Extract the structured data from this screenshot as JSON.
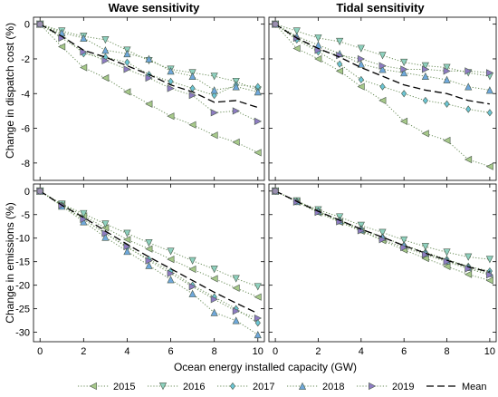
{
  "figure": {
    "xlabel": "Ocean energy installed capacity (GW)",
    "ylabel_top": "Change in dispatch cost (%)",
    "ylabel_bottom": "Change in emissions (%)",
    "col_titles": [
      "Wave sensitivity",
      "Tidal sensitivity"
    ]
  },
  "legend": [
    {
      "label": "2015",
      "marker": "triangle-left",
      "color": "#a7c98a"
    },
    {
      "label": "2016",
      "marker": "triangle-down",
      "color": "#8ed1bf"
    },
    {
      "label": "2017",
      "marker": "diamond",
      "color": "#6cc6d6"
    },
    {
      "label": "2018",
      "marker": "triangle-up",
      "color": "#6fa8dc"
    },
    {
      "label": "2019",
      "marker": "triangle-right",
      "color": "#8e7cc3"
    },
    {
      "label": "Mean",
      "marker": "none",
      "color": "#000000"
    }
  ],
  "chart_data": [
    {
      "type": "line",
      "title": "Wave sensitivity",
      "ylabel": "Change in dispatch cost (%)",
      "xlim": [
        -0.3,
        10.3
      ],
      "ylim": [
        -9,
        0.4
      ],
      "xticks": [
        0,
        2,
        4,
        6,
        8,
        10
      ],
      "yticks": [
        0,
        -2,
        -4,
        -6,
        -8
      ],
      "x": [
        0,
        1,
        2,
        3,
        4,
        5,
        6,
        7,
        8,
        9,
        10
      ],
      "series": [
        {
          "name": "2015",
          "values": [
            0,
            -1.3,
            -2.5,
            -3.1,
            -3.9,
            -4.6,
            -5.3,
            -5.8,
            -6.4,
            -6.8,
            -7.4
          ]
        },
        {
          "name": "2016",
          "values": [
            0,
            -0.4,
            -0.7,
            -0.9,
            -1.5,
            -2.1,
            -2.6,
            -2.8,
            -3.0,
            -3.3,
            -3.8
          ]
        },
        {
          "name": "2017",
          "values": [
            0,
            -0.6,
            -1.7,
            -1.9,
            -2.2,
            -2.9,
            -3.3,
            -3.7,
            -4.1,
            -3.5,
            -3.6
          ]
        },
        {
          "name": "2018",
          "values": [
            0,
            -0.5,
            -0.8,
            -1.5,
            -1.7,
            -2.0,
            -2.7,
            -3.0,
            -3.8,
            -3.6,
            -3.9
          ]
        },
        {
          "name": "2019",
          "values": [
            0,
            -0.8,
            -1.6,
            -2.1,
            -2.6,
            -3.1,
            -3.7,
            -4.1,
            -5.1,
            -5.0,
            -5.6
          ]
        },
        {
          "name": "Mean",
          "values": [
            0,
            -0.7,
            -1.5,
            -1.9,
            -2.4,
            -2.9,
            -3.5,
            -3.9,
            -4.5,
            -4.4,
            -4.8
          ]
        }
      ]
    },
    {
      "type": "line",
      "title": "Tidal sensitivity",
      "ylabel": "",
      "xlim": [
        -0.3,
        10.3
      ],
      "ylim": [
        -9,
        0.4
      ],
      "xticks": [
        0,
        2,
        4,
        6,
        8,
        10
      ],
      "yticks": [
        0,
        -2,
        -4,
        -6,
        -8
      ],
      "x": [
        0,
        1,
        2,
        3,
        4,
        5,
        6,
        7,
        8,
        9,
        10
      ],
      "series": [
        {
          "name": "2015",
          "values": [
            0,
            -1.4,
            -2.0,
            -2.7,
            -3.6,
            -4.4,
            -5.6,
            -6.3,
            -6.7,
            -7.8,
            -8.2
          ]
        },
        {
          "name": "2016",
          "values": [
            0,
            -0.4,
            -0.8,
            -1.0,
            -1.4,
            -1.8,
            -2.2,
            -2.4,
            -2.5,
            -2.8,
            -3.0
          ]
        },
        {
          "name": "2017",
          "values": [
            0,
            -0.9,
            -1.6,
            -2.3,
            -3.2,
            -3.6,
            -4.0,
            -4.4,
            -4.6,
            -4.9,
            -5.1
          ]
        },
        {
          "name": "2018",
          "values": [
            0,
            -0.7,
            -1.2,
            -1.7,
            -2.3,
            -2.6,
            -2.8,
            -3.0,
            -3.2,
            -3.6,
            -3.8
          ]
        },
        {
          "name": "2019",
          "values": [
            0,
            -0.8,
            -1.5,
            -1.8,
            -2.0,
            -2.4,
            -2.6,
            -2.6,
            -2.7,
            -2.7,
            -2.8
          ]
        },
        {
          "name": "Mean",
          "values": [
            0,
            -0.8,
            -1.4,
            -1.9,
            -2.5,
            -3.0,
            -3.5,
            -3.8,
            -4.0,
            -4.4,
            -4.6
          ]
        }
      ]
    },
    {
      "type": "line",
      "title": "",
      "ylabel": "Change in emissions (%)",
      "xlim": [
        -0.3,
        10.3
      ],
      "ylim": [
        -32,
        1.5
      ],
      "xticks": [
        0,
        2,
        4,
        6,
        8,
        10
      ],
      "yticks": [
        0,
        -5,
        -10,
        -15,
        -20,
        -25,
        -30
      ],
      "x": [
        0,
        1,
        2,
        3,
        4,
        5,
        6,
        7,
        8,
        9,
        10
      ],
      "series": [
        {
          "name": "2015",
          "values": [
            0,
            -2.8,
            -5.3,
            -7.8,
            -10.3,
            -12.3,
            -14.5,
            -16.6,
            -18.6,
            -20.6,
            -22.5
          ]
        },
        {
          "name": "2016",
          "values": [
            0,
            -2.8,
            -4.8,
            -7.0,
            -9.0,
            -11.0,
            -12.8,
            -14.8,
            -16.6,
            -18.6,
            -20.3
          ]
        },
        {
          "name": "2017",
          "values": [
            0,
            -3.0,
            -6.0,
            -9.0,
            -12.0,
            -14.5,
            -17.0,
            -20.0,
            -22.5,
            -25.0,
            -28.0
          ]
        },
        {
          "name": "2018",
          "values": [
            0,
            -3.2,
            -6.5,
            -9.8,
            -12.8,
            -15.8,
            -18.8,
            -21.8,
            -25.8,
            -27.5,
            -30.5
          ]
        },
        {
          "name": "2019",
          "values": [
            0,
            -3.0,
            -6.0,
            -9.0,
            -11.8,
            -14.8,
            -17.5,
            -20.3,
            -23.0,
            -25.5,
            -27.0
          ]
        },
        {
          "name": "Mean",
          "values": [
            0,
            -3.0,
            -5.6,
            -8.5,
            -11.3,
            -14.0,
            -16.5,
            -19.0,
            -21.5,
            -23.8,
            -26.0
          ]
        }
      ]
    },
    {
      "type": "line",
      "title": "",
      "ylabel": "",
      "xlim": [
        -0.3,
        10.3
      ],
      "ylim": [
        -32,
        1.5
      ],
      "xticks": [
        0,
        2,
        4,
        6,
        8,
        10
      ],
      "yticks": [
        0,
        -5,
        -10,
        -15,
        -20,
        -25,
        -30
      ],
      "x": [
        0,
        1,
        2,
        3,
        4,
        5,
        6,
        7,
        8,
        9,
        10
      ],
      "series": [
        {
          "name": "2015",
          "values": [
            0,
            -2.3,
            -4.6,
            -6.6,
            -8.5,
            -10.5,
            -12.5,
            -14.3,
            -16.0,
            -17.7,
            -19.0
          ]
        },
        {
          "name": "2016",
          "values": [
            0,
            -2.1,
            -4.0,
            -5.5,
            -7.3,
            -8.8,
            -10.4,
            -11.8,
            -13.0,
            -14.0,
            -14.5
          ]
        },
        {
          "name": "2017",
          "values": [
            0,
            -2.2,
            -4.3,
            -6.2,
            -8.0,
            -9.8,
            -11.5,
            -13.0,
            -14.5,
            -16.0,
            -17.0
          ]
        },
        {
          "name": "2018",
          "values": [
            0,
            -2.2,
            -4.3,
            -6.3,
            -8.2,
            -9.8,
            -11.5,
            -13.2,
            -14.8,
            -16.2,
            -17.5
          ]
        },
        {
          "name": "2019",
          "values": [
            0,
            -2.3,
            -4.5,
            -6.5,
            -8.4,
            -10.3,
            -12.0,
            -13.5,
            -15.0,
            -16.5,
            -17.8
          ]
        },
        {
          "name": "Mean",
          "values": [
            0,
            -2.2,
            -4.3,
            -6.2,
            -8.1,
            -9.8,
            -11.6,
            -13.2,
            -14.7,
            -16.1,
            -17.2
          ]
        }
      ]
    }
  ]
}
